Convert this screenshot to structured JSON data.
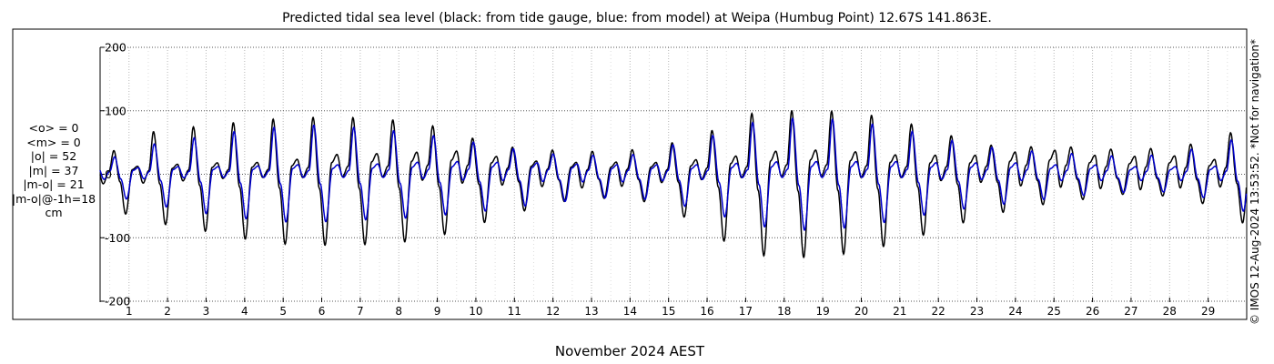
{
  "chart_data": {
    "type": "line",
    "title": "Predicted tidal sea level (black: from tide gauge, blue: from model) at Weipa (Humbug Point) 12.67S 141.863E.",
    "xlabel": "November 2024 AEST",
    "ylabel": "",
    "xlim": [
      0.25,
      30.0
    ],
    "ylim": [
      -220,
      220
    ],
    "x_ticks": [
      "1",
      "2",
      "3",
      "4",
      "5",
      "6",
      "7",
      "8",
      "9",
      "10",
      "11",
      "12",
      "13",
      "14",
      "15",
      "16",
      "17",
      "18",
      "19",
      "20",
      "21",
      "22",
      "23",
      "24",
      "25",
      "26",
      "27",
      "28",
      "29"
    ],
    "y_ticks": [
      "200",
      "100",
      "0",
      "-100",
      "-200"
    ],
    "y_tick_values": [
      200,
      100,
      0,
      -100,
      -200
    ],
    "grid": true,
    "series": [
      {
        "name": "from tide gauge",
        "color": "#000000",
        "x": [
          0.25,
          1.0,
          2.0,
          3.0,
          4.0,
          5.0,
          6.0,
          7.0,
          8.0,
          9.0,
          10.0,
          11.0,
          12.0,
          13.0,
          14.0,
          15.0,
          16.0,
          17.0,
          18.0,
          19.0,
          20.0,
          21.0,
          22.0,
          23.0,
          24.0,
          25.0,
          26.0,
          27.0,
          28.0,
          29.0,
          30.0
        ],
        "amp_high": [
          15,
          62,
          70,
          77,
          83,
          88,
          90,
          89,
          85,
          75,
          55,
          42,
          38,
          36,
          38,
          48,
          65,
          95,
          100,
          100,
          96,
          84,
          67,
          48,
          42,
          45,
          40,
          39,
          42,
          52,
          75
        ],
        "amp_low": [
          45,
          65,
          80,
          90,
          102,
          110,
          112,
          111,
          108,
          98,
          80,
          62,
          45,
          38,
          38,
          52,
          90,
          125,
          132,
          130,
          122,
          108,
          88,
          70,
          55,
          45,
          38,
          30,
          35,
          48,
          80
        ],
        "small_high": [
          10,
          12,
          15,
          18,
          18,
          20,
          30,
          33,
          32,
          38,
          35,
          22,
          20,
          18,
          20,
          18,
          25,
          30,
          38,
          38,
          35,
          30,
          30,
          30,
          35,
          38,
          30,
          28,
          30,
          22,
          30
        ],
        "small_low": [
          15,
          15,
          12,
          8,
          5,
          5,
          5,
          3,
          5,
          12,
          15,
          18,
          20,
          22,
          18,
          12,
          8,
          5,
          3,
          3,
          5,
          5,
          10,
          12,
          18,
          20,
          22,
          25,
          22,
          20,
          20
        ]
      },
      {
        "name": "from model",
        "color": "#0000cc",
        "x": [
          0.25,
          1.0,
          2.0,
          3.0,
          4.0,
          5.0,
          6.0,
          7.0,
          8.0,
          9.0,
          10.0,
          11.0,
          12.0,
          13.0,
          14.0,
          15.0,
          16.0,
          17.0,
          18.0,
          19.0,
          20.0,
          21.0,
          22.0,
          23.0,
          24.0,
          25.0,
          26.0,
          27.0,
          28.0,
          29.0,
          30.0
        ],
        "amp_high": [
          15,
          40,
          52,
          60,
          70,
          75,
          78,
          73,
          68,
          60,
          50,
          40,
          32,
          30,
          30,
          45,
          58,
          80,
          88,
          88,
          82,
          72,
          58,
          45,
          38,
          35,
          30,
          28,
          32,
          45,
          60
        ],
        "amp_low": [
          30,
          40,
          52,
          62,
          70,
          75,
          75,
          72,
          70,
          65,
          60,
          52,
          45,
          38,
          36,
          45,
          58,
          78,
          88,
          88,
          82,
          72,
          60,
          52,
          45,
          38,
          32,
          28,
          28,
          38,
          60
        ],
        "small_high": [
          10,
          10,
          12,
          12,
          12,
          15,
          15,
          15,
          18,
          20,
          20,
          18,
          18,
          15,
          15,
          15,
          15,
          18,
          20,
          20,
          20,
          20,
          18,
          18,
          18,
          15,
          15,
          12,
          12,
          12,
          15
        ],
        "small_low": [
          8,
          8,
          6,
          5,
          5,
          5,
          5,
          5,
          5,
          8,
          10,
          10,
          12,
          12,
          12,
          10,
          8,
          5,
          5,
          5,
          5,
          5,
          8,
          8,
          10,
          10,
          10,
          10,
          10,
          10,
          10
        ]
      }
    ],
    "stats_lines": [
      "<o> = 0",
      "<m> = 0",
      "|o| = 52",
      "|m| = 37",
      "|m-o| = 21",
      "|m-o|@-1h=18",
      "cm"
    ],
    "side_note": "© IMOS 12-Aug-2024 13:53:52. *Not for navigation*"
  }
}
